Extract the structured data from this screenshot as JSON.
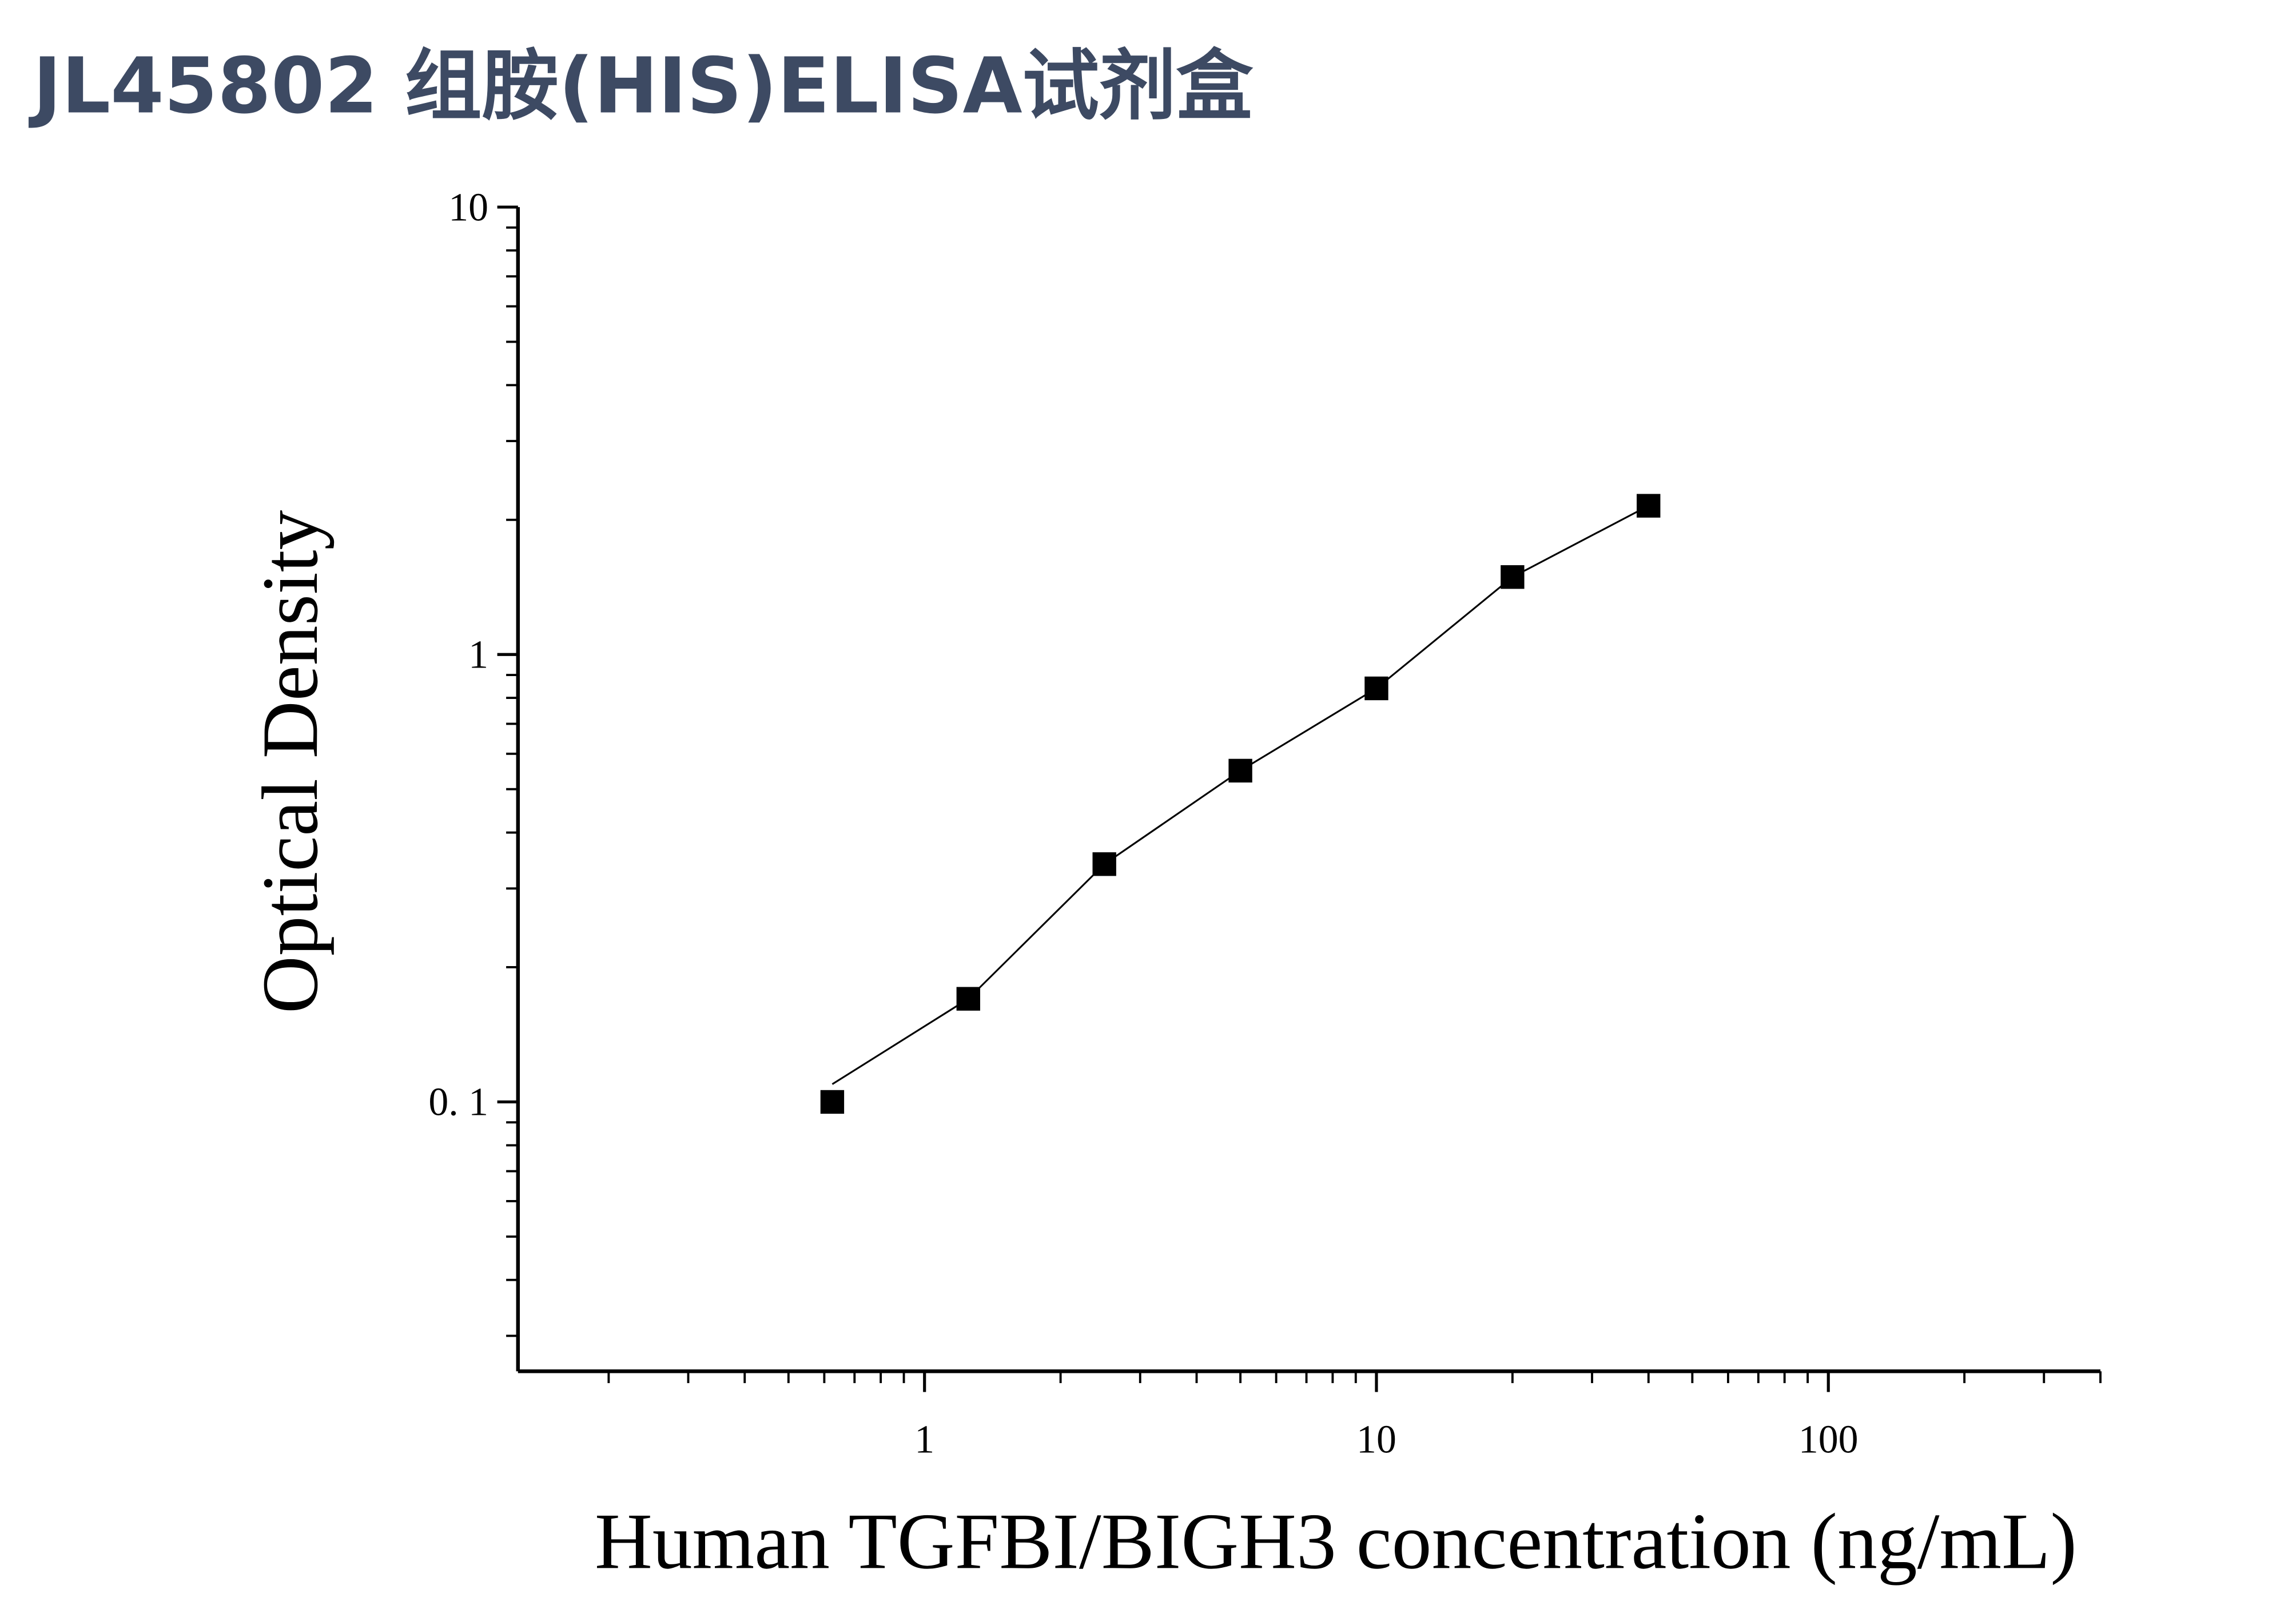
{
  "chart_data": {
    "type": "scatter",
    "title": "JL45802 组胺(HIS)ELISA试剂盒",
    "xlabel": "Human TGFBI/BIGH3 concentration (ng/mL)",
    "ylabel": "Optical Density",
    "xscale": "log",
    "yscale": "log",
    "xlim": [
      0.126,
      400
    ],
    "ylim": [
      0.025,
      10
    ],
    "xticks": [
      1,
      10,
      100
    ],
    "yticks": [
      {
        "value": 0.1,
        "label": "0. 1"
      },
      1,
      10
    ],
    "color": "#000000",
    "x": [
      0.625,
      1.25,
      2.5,
      5,
      10,
      20,
      40
    ],
    "values": [
      0.1,
      0.17,
      0.34,
      0.55,
      0.84,
      1.49,
      2.15
    ]
  }
}
